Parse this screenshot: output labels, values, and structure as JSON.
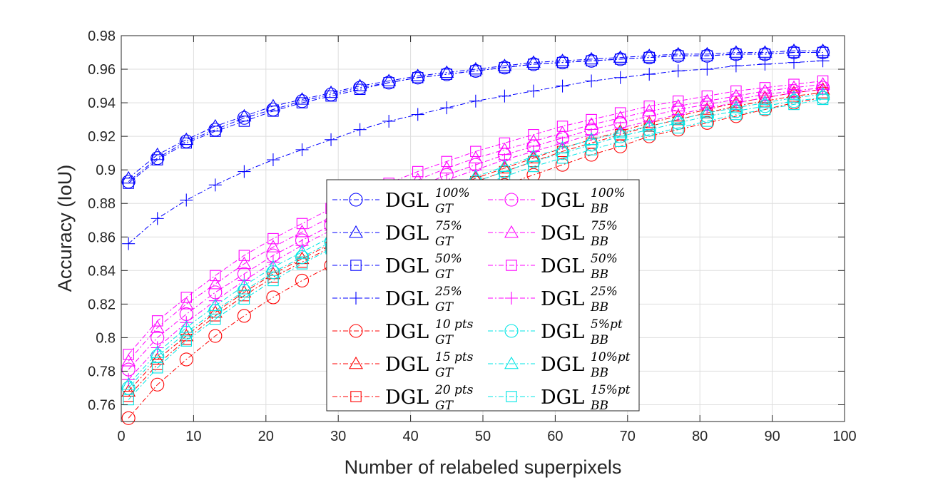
{
  "chart_data": {
    "type": "line",
    "xlabel": "Number of relabeled superpixels",
    "ylabel": "Accuracy (IoU)",
    "xlim": [
      0,
      100
    ],
    "ylim": [
      0.75,
      0.98
    ],
    "xticks": [
      0,
      10,
      20,
      30,
      40,
      50,
      60,
      70,
      80,
      90,
      100
    ],
    "xtick_labels": [
      "0",
      "10",
      "20",
      "30",
      "40",
      "50",
      "60",
      "70",
      "80",
      "90",
      "100"
    ],
    "yticks": [
      0.76,
      0.78,
      0.8,
      0.82,
      0.84,
      0.86,
      0.88,
      0.9,
      0.92,
      0.94,
      0.96,
      0.98
    ],
    "ytick_labels": [
      "0.76",
      "0.78",
      "0.8",
      "0.82",
      "0.84",
      "0.86",
      "0.88",
      "0.9",
      "0.92",
      "0.94",
      "0.96",
      "0.98"
    ],
    "grid": true,
    "legend_placement": "center",
    "x": [
      1,
      5,
      9,
      13,
      17,
      21,
      25,
      29,
      33,
      37,
      41,
      45,
      49,
      53,
      57,
      61,
      65,
      69,
      73,
      77,
      81,
      85,
      89,
      93,
      97
    ],
    "series": [
      {
        "base": "DGL",
        "sup": "100%",
        "sub": "GT",
        "color": "#0000ff",
        "marker": "circle",
        "values": [
          0.893,
          0.907,
          0.917,
          0.924,
          0.931,
          0.936,
          0.941,
          0.945,
          0.949,
          0.952,
          0.955,
          0.957,
          0.959,
          0.961,
          0.963,
          0.964,
          0.965,
          0.966,
          0.967,
          0.968,
          0.968,
          0.969,
          0.969,
          0.97,
          0.97
        ]
      },
      {
        "base": "DGL",
        "sup": "75%",
        "sub": "GT",
        "color": "#0000ff",
        "marker": "triangle",
        "values": [
          0.895,
          0.909,
          0.918,
          0.926,
          0.932,
          0.938,
          0.942,
          0.946,
          0.95,
          0.953,
          0.956,
          0.958,
          0.96,
          0.962,
          0.964,
          0.965,
          0.966,
          0.967,
          0.968,
          0.969,
          0.969,
          0.97,
          0.97,
          0.971,
          0.971
        ]
      },
      {
        "base": "DGL",
        "sup": "50%",
        "sub": "GT",
        "color": "#0000ff",
        "marker": "square",
        "values": [
          0.892,
          0.906,
          0.916,
          0.923,
          0.929,
          0.935,
          0.94,
          0.944,
          0.948,
          0.952,
          0.955,
          0.957,
          0.959,
          0.961,
          0.963,
          0.964,
          0.965,
          0.966,
          0.967,
          0.968,
          0.968,
          0.969,
          0.969,
          0.97,
          0.97
        ]
      },
      {
        "base": "DGL",
        "sup": "25%",
        "sub": "GT",
        "color": "#0000ff",
        "marker": "plus",
        "values": [
          0.856,
          0.871,
          0.882,
          0.891,
          0.899,
          0.906,
          0.912,
          0.918,
          0.924,
          0.929,
          0.933,
          0.937,
          0.941,
          0.944,
          0.947,
          0.95,
          0.953,
          0.955,
          0.957,
          0.959,
          0.96,
          0.962,
          0.963,
          0.964,
          0.965
        ]
      },
      {
        "base": "DGL",
        "sup": "10 pts",
        "sub": "GT",
        "color": "#ff0000",
        "marker": "circle",
        "values": [
          0.752,
          0.772,
          0.787,
          0.801,
          0.813,
          0.824,
          0.834,
          0.843,
          0.852,
          0.86,
          0.868,
          0.876,
          0.884,
          0.891,
          0.897,
          0.903,
          0.909,
          0.914,
          0.92,
          0.924,
          0.928,
          0.932,
          0.936,
          0.94,
          0.943
        ]
      },
      {
        "base": "DGL",
        "sup": "15 pts",
        "sub": "GT",
        "color": "#ff0000",
        "marker": "triangle",
        "values": [
          0.768,
          0.787,
          0.801,
          0.815,
          0.827,
          0.838,
          0.847,
          0.856,
          0.865,
          0.873,
          0.881,
          0.888,
          0.895,
          0.901,
          0.907,
          0.913,
          0.918,
          0.923,
          0.928,
          0.932,
          0.936,
          0.94,
          0.943,
          0.946,
          0.948
        ]
      },
      {
        "base": "DGL",
        "sup": "20 pts",
        "sub": "GT",
        "color": "#ff0000",
        "marker": "square",
        "values": [
          0.765,
          0.784,
          0.799,
          0.813,
          0.825,
          0.836,
          0.845,
          0.854,
          0.863,
          0.871,
          0.879,
          0.886,
          0.893,
          0.899,
          0.905,
          0.911,
          0.916,
          0.921,
          0.926,
          0.93,
          0.934,
          0.938,
          0.941,
          0.944,
          0.946
        ]
      },
      {
        "base": "DGL",
        "sup": "100%",
        "sub": "BB",
        "color": "#ff00ff",
        "marker": "circle",
        "values": [
          0.781,
          0.8,
          0.814,
          0.827,
          0.838,
          0.849,
          0.858,
          0.867,
          0.875,
          0.883,
          0.89,
          0.897,
          0.903,
          0.909,
          0.914,
          0.919,
          0.924,
          0.928,
          0.932,
          0.936,
          0.939,
          0.942,
          0.945,
          0.947,
          0.949
        ]
      },
      {
        "base": "DGL",
        "sup": "75%",
        "sub": "BB",
        "color": "#ff00ff",
        "marker": "triangle",
        "values": [
          0.786,
          0.806,
          0.82,
          0.832,
          0.844,
          0.854,
          0.863,
          0.872,
          0.88,
          0.887,
          0.894,
          0.901,
          0.907,
          0.912,
          0.917,
          0.922,
          0.927,
          0.931,
          0.935,
          0.938,
          0.941,
          0.944,
          0.947,
          0.949,
          0.951
        ]
      },
      {
        "base": "DGL",
        "sup": "50%",
        "sub": "BB",
        "color": "#ff00ff",
        "marker": "square",
        "values": [
          0.79,
          0.81,
          0.824,
          0.837,
          0.849,
          0.859,
          0.868,
          0.877,
          0.885,
          0.892,
          0.899,
          0.905,
          0.911,
          0.916,
          0.921,
          0.926,
          0.93,
          0.934,
          0.938,
          0.941,
          0.944,
          0.947,
          0.949,
          0.951,
          0.953
        ]
      },
      {
        "base": "DGL",
        "sup": "25%",
        "sub": "BB",
        "color": "#ff00ff",
        "marker": "plus",
        "values": [
          0.775,
          0.794,
          0.809,
          0.822,
          0.834,
          0.845,
          0.855,
          0.864,
          0.872,
          0.88,
          0.887,
          0.894,
          0.9,
          0.906,
          0.911,
          0.916,
          0.921,
          0.925,
          0.929,
          0.933,
          0.937,
          0.94,
          0.943,
          0.946,
          0.948
        ]
      },
      {
        "base": "DGL",
        "sup": "5%pt",
        "sub": "BB",
        "color": "#00e5e5",
        "marker": "circle",
        "values": [
          0.77,
          0.789,
          0.803,
          0.816,
          0.828,
          0.839,
          0.848,
          0.857,
          0.865,
          0.873,
          0.88,
          0.887,
          0.893,
          0.899,
          0.905,
          0.91,
          0.915,
          0.92,
          0.924,
          0.928,
          0.932,
          0.935,
          0.938,
          0.941,
          0.943
        ]
      },
      {
        "base": "DGL",
        "sup": "10%pt",
        "sub": "BB",
        "color": "#00e5e5",
        "marker": "triangle",
        "values": [
          0.772,
          0.791,
          0.806,
          0.819,
          0.831,
          0.842,
          0.851,
          0.86,
          0.868,
          0.876,
          0.883,
          0.89,
          0.896,
          0.902,
          0.908,
          0.913,
          0.918,
          0.922,
          0.926,
          0.93,
          0.934,
          0.937,
          0.94,
          0.943,
          0.945
        ]
      },
      {
        "base": "DGL",
        "sup": "15%pt",
        "sub": "BB",
        "color": "#00e5e5",
        "marker": "square",
        "values": [
          0.763,
          0.782,
          0.798,
          0.811,
          0.823,
          0.834,
          0.844,
          0.853,
          0.861,
          0.869,
          0.876,
          0.883,
          0.89,
          0.896,
          0.902,
          0.907,
          0.912,
          0.917,
          0.921,
          0.925,
          0.929,
          0.933,
          0.936,
          0.939,
          0.942
        ]
      }
    ]
  }
}
